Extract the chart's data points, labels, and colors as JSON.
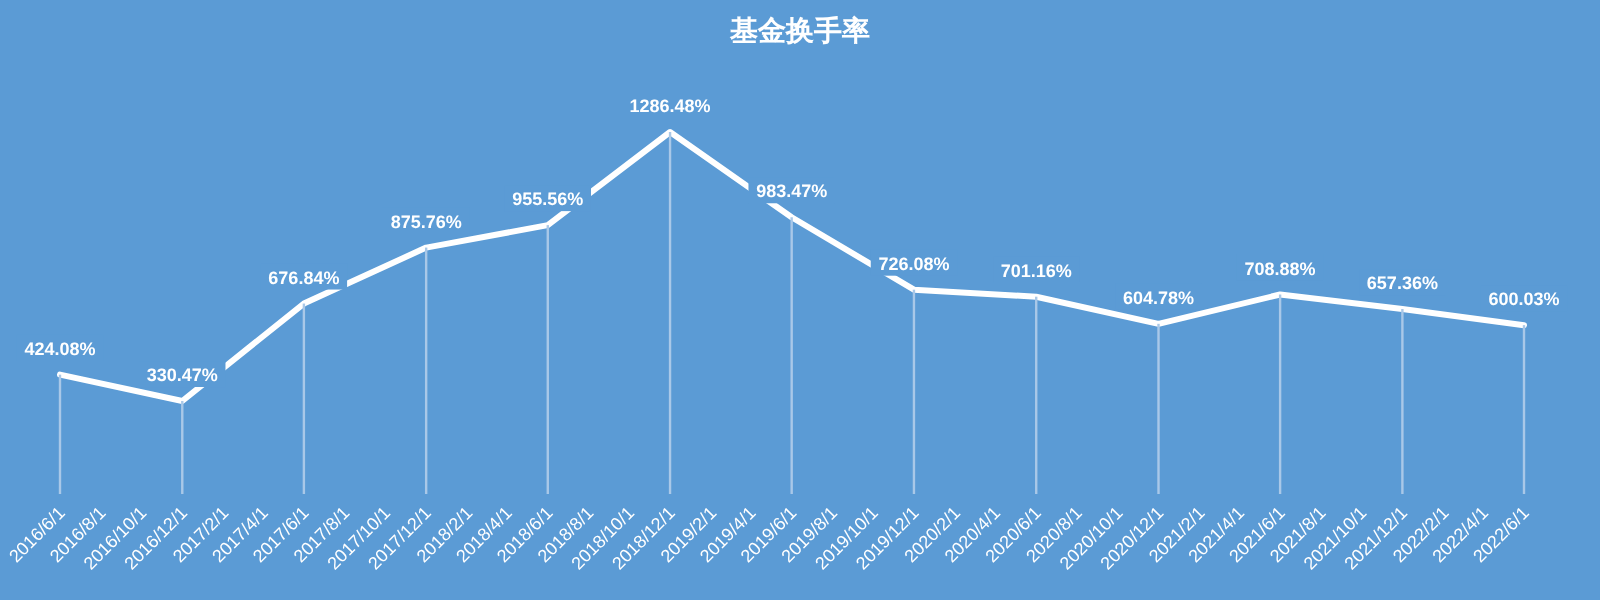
{
  "chart_data": {
    "type": "line",
    "title": "基金换手率",
    "x": [
      "2016-06-01",
      "2016-12-01",
      "2017-06-01",
      "2017-12-01",
      "2018-06-01",
      "2018-12-01",
      "2019-06-01",
      "2019-12-01",
      "2020-06-01",
      "2020-12-01",
      "2021-06-01",
      "2021-12-01",
      "2022-06-01"
    ],
    "series": [
      {
        "color": "#ffffff",
        "values": [
          424.08,
          330.47,
          676.84,
          875.76,
          955.56,
          1286.48,
          983.47,
          726.08,
          701.16,
          604.78,
          708.88,
          657.36,
          600.03
        ],
        "value_labels": [
          "424.08%",
          "330.47%",
          "676.84%",
          "875.76%",
          "955.56%",
          "1286.48%",
          "983.47%",
          "726.08%",
          "701.16%",
          "604.78%",
          "708.88%",
          "657.36%",
          "600.03%"
        ]
      },
      {
        "type": "bar",
        "color": "#a9c8e8",
        "values": [
          424.08,
          330.47,
          676.84,
          875.76,
          955.56,
          1286.48,
          983.47,
          726.08,
          701.16,
          604.78,
          708.88,
          657.36,
          600.03
        ]
      }
    ],
    "xlim": [
      "2016-06-01",
      "2022-06-01"
    ],
    "tick_labels": "x",
    "line_style": "solid",
    "xticks": [
      {
        "value": "2016-06-01",
        "label": "2016/6/1"
      },
      {
        "value": "2016-08-01",
        "label": "2016/8/1"
      },
      {
        "value": "2016-10-01",
        "label": "2016/10/1"
      },
      {
        "value": "2016-12-01",
        "label": "2016/12/1"
      },
      {
        "value": "2017-02-01",
        "label": "2017/2/1"
      },
      {
        "value": "2017-04-01",
        "label": "2017/4/1"
      },
      {
        "value": "2017-06-01",
        "label": "2017/6/1"
      },
      {
        "value": "2017-08-01",
        "label": "2017/8/1"
      },
      {
        "value": "2017-10-01",
        "label": "2017/10/1"
      },
      {
        "value": "2017-12-01",
        "label": "2017/12/1"
      },
      {
        "value": "2018-02-01",
        "label": "2018/2/1"
      },
      {
        "value": "2018-04-01",
        "label": "2018/4/1"
      },
      {
        "value": "2018-06-01",
        "label": "2018/6/1"
      },
      {
        "value": "2018-08-01",
        "label": "2018/8/1"
      },
      {
        "value": "2018-10-01",
        "label": "2018/10/1"
      },
      {
        "value": "2018-12-01",
        "label": "2018/12/1"
      },
      {
        "value": "2019-02-01",
        "label": "2019/2/1"
      },
      {
        "value": "2019-04-01",
        "label": "2019/4/1"
      },
      {
        "value": "2019-06-01",
        "label": "2019/6/1"
      },
      {
        "value": "2019-08-01",
        "label": "2019/8/1"
      },
      {
        "value": "2019-10-01",
        "label": "2019/10/1"
      },
      {
        "value": "2019-12-01",
        "label": "2019/12/1"
      },
      {
        "value": "2020-02-01",
        "label": "2020/2/1"
      },
      {
        "value": "2020-04-01",
        "label": "2020/4/1"
      },
      {
        "value": "2020-06-01",
        "label": "2020/6/1"
      },
      {
        "value": "2020-08-01",
        "label": "2020/8/1"
      },
      {
        "value": "2020-10-01",
        "label": "2020/10/1"
      },
      {
        "value": "2020-12-01",
        "label": "2020/12/1"
      },
      {
        "value": "2021-02-01",
        "label": "2021/2/1"
      },
      {
        "value": "2021-04-01",
        "label": "2021/4/1"
      },
      {
        "value": "2021-06-01",
        "label": "2021/6/1"
      },
      {
        "value": "2021-08-01",
        "label": "2021/8/1"
      },
      {
        "value": "2021-10-01",
        "label": "2021/10/1"
      },
      {
        "value": "2021-12-01",
        "label": "2021/12/1"
      },
      {
        "value": "2022-02-01",
        "label": "2022/2/1"
      },
      {
        "value": "2022-04-01",
        "label": "2022/4/1"
      },
      {
        "value": "2022-06-01",
        "label": "2022/6/1"
      }
    ]
  }
}
